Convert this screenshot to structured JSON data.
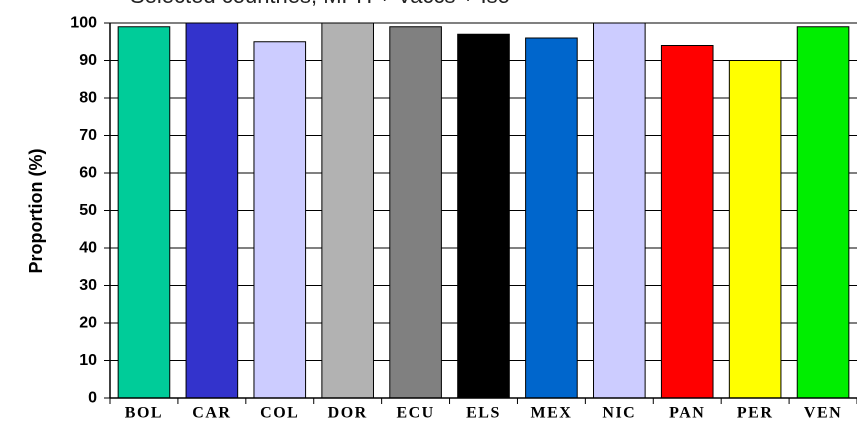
{
  "chart_data": {
    "type": "bar",
    "title": "Selected countries, MPH + Vaccs + Iso",
    "ylabel": "Proportion (%)",
    "xlabel": "",
    "ylim": [
      0,
      100
    ],
    "yticks": [
      0,
      10,
      20,
      30,
      40,
      50,
      60,
      70,
      80,
      90,
      100
    ],
    "grid": true,
    "legend": "none",
    "categories": [
      "BOL",
      "CAR",
      "COL",
      "DOR",
      "ECU",
      "ELS",
      "MEX",
      "NIC",
      "PAN",
      "PER",
      "VEN"
    ],
    "values": [
      99,
      100,
      95,
      100,
      99,
      97,
      96,
      100,
      94,
      90,
      99
    ],
    "colors": [
      "#00cc99",
      "#3333cc",
      "#ccccff",
      "#b2b2b2",
      "#808080",
      "#000000",
      "#0066cc",
      "#ccccff",
      "#ff0000",
      "#ffff00",
      "#00ee00"
    ]
  }
}
